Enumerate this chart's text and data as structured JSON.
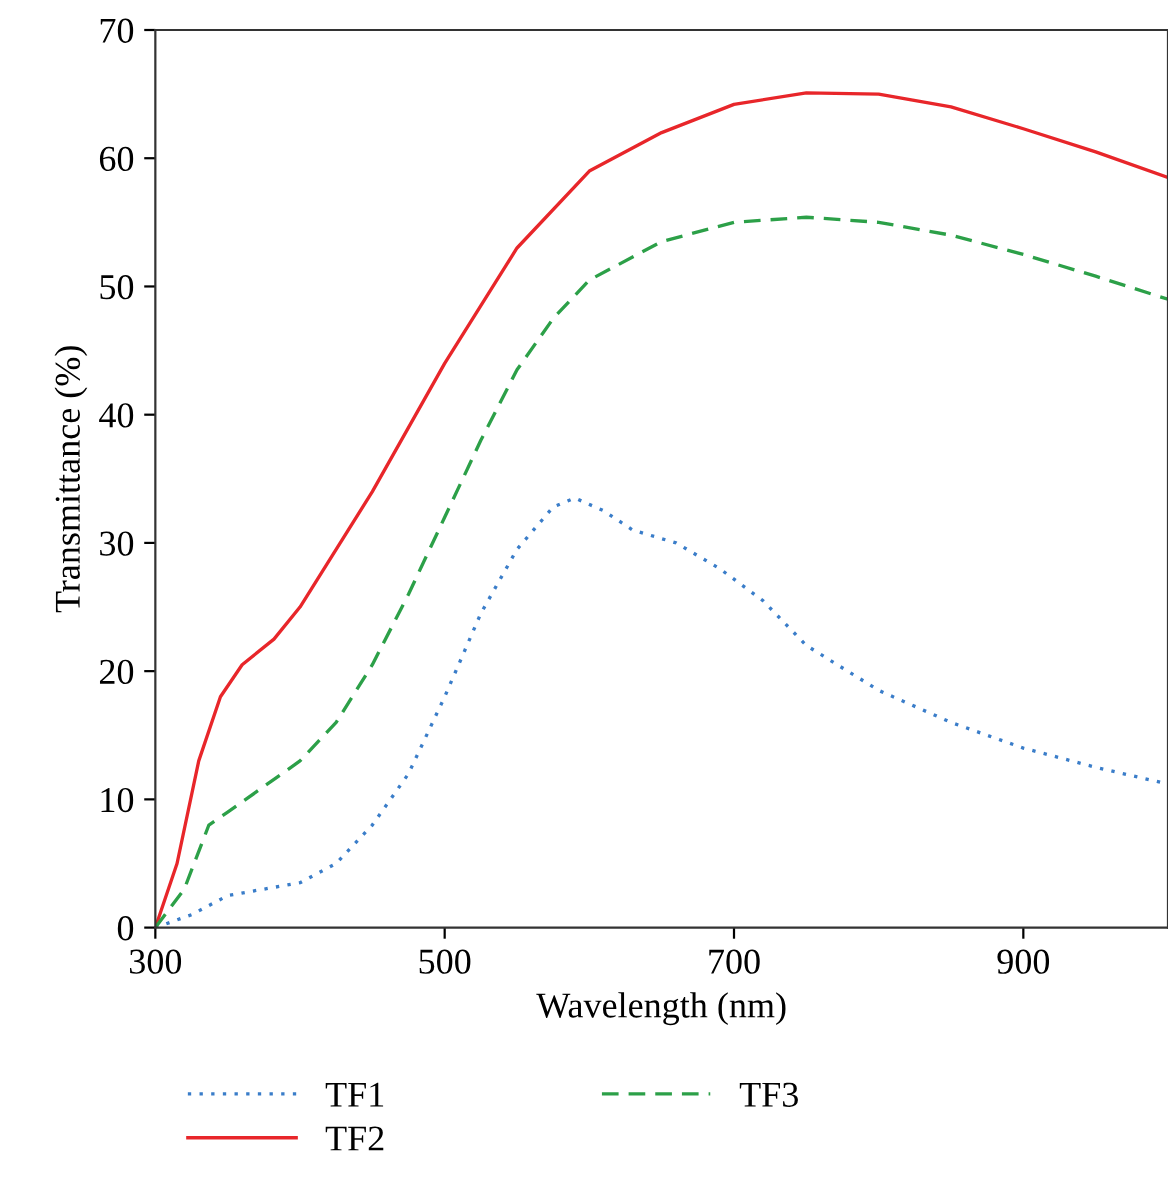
{
  "chart_data": {
    "type": "line",
    "xlabel": "Wavelength (nm)",
    "ylabel": "Transmittance (%)",
    "xlim": [
      300,
      1000
    ],
    "xticks": [
      300,
      500,
      700,
      900
    ],
    "ylim": [
      0,
      70
    ],
    "yticks": [
      0,
      10,
      20,
      30,
      40,
      50,
      60,
      70
    ],
    "grid": false,
    "legend": "bottom",
    "series": [
      {
        "name": "TF1",
        "color": "#3a7dc9",
        "line_style": "dotted",
        "x": [
          300,
          325,
          350,
          375,
          400,
          425,
          450,
          475,
          500,
          525,
          550,
          575,
          590,
          610,
          630,
          660,
          690,
          720,
          750,
          800,
          850,
          900,
          950,
          1000
        ],
        "values": [
          0,
          1,
          2.5,
          3,
          3.5,
          5,
          8,
          12,
          18,
          24.5,
          29.5,
          32.8,
          33.5,
          32.5,
          31,
          30,
          28,
          25.5,
          22,
          18.5,
          16,
          14,
          12.5,
          11.2
        ]
      },
      {
        "name": "TF2",
        "color": "#e8262a",
        "line_style": "solid",
        "x": [
          300,
          315,
          330,
          345,
          360,
          382,
          400,
          450,
          500,
          550,
          600,
          650,
          700,
          750,
          800,
          850,
          900,
          950,
          1000
        ],
        "values": [
          0,
          5,
          13,
          18,
          20.5,
          22.5,
          25,
          34,
          44,
          53,
          59,
          62,
          64.2,
          65.1,
          65,
          64,
          62.3,
          60.5,
          58.5
        ]
      },
      {
        "name": "TF3",
        "color": "#2ca048",
        "line_style": "dashed",
        "x": [
          300,
          320,
          337,
          350,
          375,
          400,
          425,
          450,
          475,
          500,
          525,
          550,
          575,
          600,
          650,
          700,
          750,
          800,
          850,
          900,
          950,
          1000
        ],
        "values": [
          0,
          3,
          8,
          9,
          11,
          13,
          16,
          20.5,
          26,
          32,
          38,
          43.5,
          47.5,
          50.5,
          53.5,
          55,
          55.4,
          55,
          54,
          52.5,
          50.8,
          49
        ]
      }
    ]
  }
}
